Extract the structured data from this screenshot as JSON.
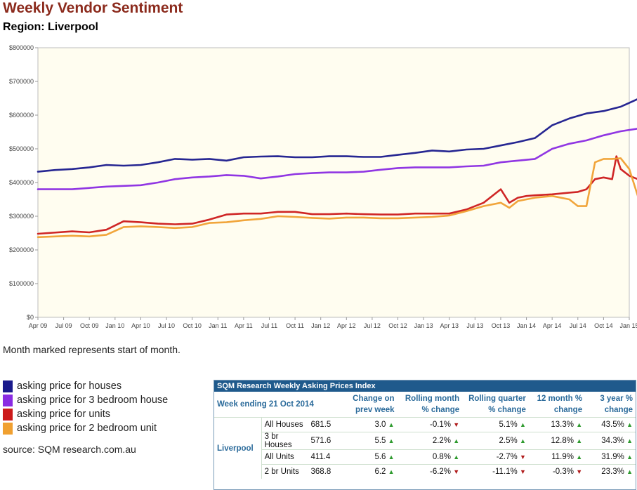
{
  "header": {
    "title": "Weekly Vendor Sentiment",
    "subtitle": "Region: Liverpool"
  },
  "note": "Month marked represents start of month.",
  "source": "source: SQM research.com.au",
  "chart_data": {
    "type": "line",
    "title": "Weekly Vendor Sentiment",
    "xlabel": "",
    "ylabel": "",
    "x_ticks": [
      "Apr 09",
      "Jul 09",
      "Oct 09",
      "Jan 10",
      "Apr 10",
      "Jul 10",
      "Oct 10",
      "Jan 11",
      "Apr 11",
      "Jul 11",
      "Oct 11",
      "Jan 12",
      "Apr 12",
      "Jul 12",
      "Oct 12",
      "Jan 13",
      "Apr 13",
      "Jul 13",
      "Oct 13",
      "Jan 14",
      "Apr 14",
      "Jul 14",
      "Oct 14",
      "Jan 15"
    ],
    "y_ticks": [
      "$0",
      "$100000",
      "$200000",
      "$300000",
      "$400000",
      "$500000",
      "$600000",
      "$700000",
      "$800000"
    ],
    "ylim": [
      0,
      800000
    ],
    "grid": false,
    "legend": "below-left",
    "series": [
      {
        "name": "asking price for houses",
        "color": "#1a1a8c",
        "x": [
          0,
          2,
          4,
          6,
          8,
          10,
          12,
          14,
          16,
          18,
          20,
          22,
          24,
          26,
          28,
          30,
          32,
          34,
          36,
          38,
          40,
          42,
          44,
          46,
          48,
          50,
          52,
          54,
          56,
          58,
          60,
          62,
          64,
          66,
          68,
          70,
          71.5
        ],
        "values": [
          432000,
          437000,
          440000,
          445000,
          452000,
          450000,
          452000,
          460000,
          470000,
          468000,
          470000,
          465000,
          475000,
          477000,
          478000,
          475000,
          475000,
          478000,
          478000,
          476000,
          476000,
          482000,
          488000,
          495000,
          492000,
          498000,
          500000,
          510000,
          520000,
          532000,
          570000,
          590000,
          605000,
          612000,
          625000,
          648000,
          682000
        ]
      },
      {
        "name": "asking price for 3 bedroom house",
        "color": "#8a2be2",
        "x": [
          0,
          4,
          8,
          12,
          14,
          16,
          18,
          20,
          22,
          24,
          26,
          28,
          30,
          32,
          34,
          36,
          38,
          40,
          42,
          44,
          46,
          48,
          50,
          52,
          54,
          56,
          58,
          60,
          62,
          64,
          66,
          68,
          70,
          71.5
        ],
        "values": [
          380000,
          380000,
          388000,
          392000,
          400000,
          410000,
          415000,
          418000,
          422000,
          420000,
          412000,
          418000,
          425000,
          428000,
          430000,
          430000,
          432000,
          438000,
          443000,
          445000,
          445000,
          445000,
          448000,
          450000,
          460000,
          465000,
          470000,
          500000,
          515000,
          525000,
          540000,
          552000,
          560000,
          571600
        ]
      },
      {
        "name": "asking price for units",
        "color": "#cc1a1a",
        "x": [
          0,
          4,
          6,
          8,
          10,
          12,
          14,
          16,
          18,
          20,
          22,
          24,
          26,
          28,
          30,
          32,
          34,
          36,
          38,
          40,
          42,
          44,
          46,
          48,
          50,
          52,
          54,
          55,
          56,
          57,
          58,
          60,
          62,
          63,
          64,
          65,
          66,
          67,
          67.5,
          68,
          69,
          70,
          71.5
        ],
        "values": [
          248000,
          255000,
          252000,
          260000,
          285000,
          282000,
          278000,
          276000,
          278000,
          290000,
          305000,
          308000,
          308000,
          313000,
          313000,
          306000,
          306000,
          308000,
          306000,
          305000,
          305000,
          308000,
          308000,
          308000,
          320000,
          340000,
          380000,
          340000,
          355000,
          360000,
          362000,
          365000,
          370000,
          372000,
          380000,
          410000,
          415000,
          410000,
          478000,
          440000,
          420000,
          410000,
          411400
        ]
      },
      {
        "name": "asking price for 2 bedroom unit",
        "color": "#f0a030",
        "x": [
          0,
          4,
          6,
          8,
          10,
          12,
          14,
          16,
          18,
          20,
          22,
          24,
          26,
          28,
          30,
          32,
          34,
          36,
          38,
          40,
          42,
          44,
          46,
          48,
          50,
          52,
          54,
          55,
          56,
          57,
          58,
          60,
          62,
          63,
          64,
          65,
          66,
          67,
          68,
          69,
          70,
          71.5
        ],
        "values": [
          238000,
          242000,
          240000,
          245000,
          268000,
          270000,
          268000,
          265000,
          268000,
          280000,
          282000,
          288000,
          292000,
          300000,
          298000,
          295000,
          293000,
          296000,
          296000,
          294000,
          294000,
          296000,
          298000,
          302000,
          315000,
          330000,
          340000,
          325000,
          345000,
          350000,
          355000,
          360000,
          350000,
          330000,
          330000,
          460000,
          470000,
          470000,
          472000,
          440000,
          360000,
          368800
        ]
      }
    ]
  },
  "table": {
    "heading": "SQM Research Weekly Asking Prices Index",
    "week_label": "Week ending 21 Oct 2014",
    "columns": [
      "Change on prev week",
      "Rolling month % change",
      "Rolling quarter % change",
      "12 month % change",
      "3 year % change"
    ],
    "region": "Liverpool",
    "rows": [
      {
        "label": "All Houses",
        "value": "681.5",
        "cells": [
          {
            "v": "3.0",
            "d": "up"
          },
          {
            "v": "-0.1%",
            "d": "down"
          },
          {
            "v": "5.1%",
            "d": "up"
          },
          {
            "v": "13.3%",
            "d": "up"
          },
          {
            "v": "43.5%",
            "d": "up"
          }
        ]
      },
      {
        "label": "3 br Houses",
        "value": "571.6",
        "cells": [
          {
            "v": "5.5",
            "d": "up"
          },
          {
            "v": "2.2%",
            "d": "up"
          },
          {
            "v": "2.5%",
            "d": "up"
          },
          {
            "v": "12.8%",
            "d": "up"
          },
          {
            "v": "34.3%",
            "d": "up"
          }
        ]
      },
      {
        "label": "All Units",
        "value": "411.4",
        "cells": [
          {
            "v": "5.6",
            "d": "up"
          },
          {
            "v": "0.8%",
            "d": "up"
          },
          {
            "v": "-2.7%",
            "d": "down"
          },
          {
            "v": "11.9%",
            "d": "up"
          },
          {
            "v": "31.9%",
            "d": "up"
          }
        ]
      },
      {
        "label": "2 br Units",
        "value": "368.8",
        "cells": [
          {
            "v": "6.2",
            "d": "up"
          },
          {
            "v": "-6.2%",
            "d": "down"
          },
          {
            "v": "-11.1%",
            "d": "down"
          },
          {
            "v": "-0.3%",
            "d": "down"
          },
          {
            "v": "23.3%",
            "d": "up"
          }
        ]
      }
    ]
  }
}
